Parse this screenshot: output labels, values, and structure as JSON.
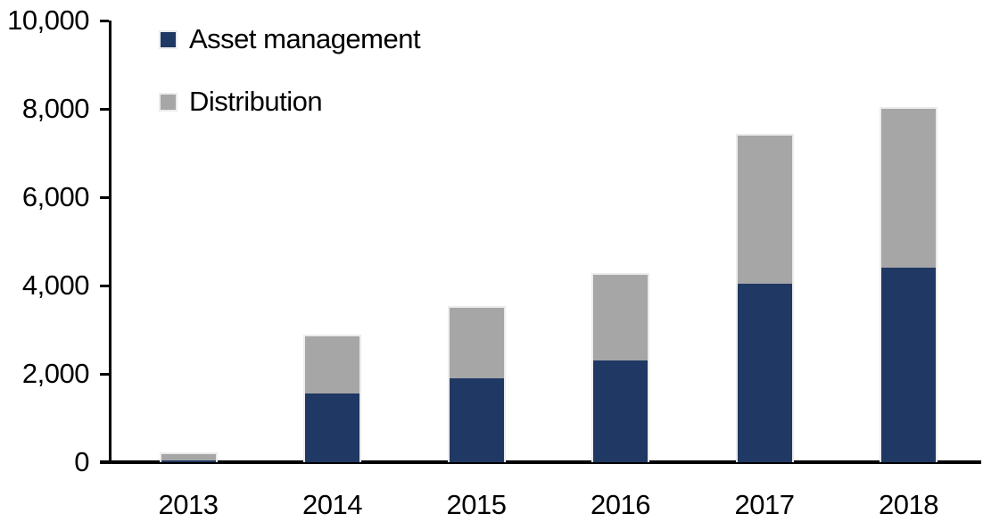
{
  "chart_data": {
    "type": "bar",
    "stacked": true,
    "title": "",
    "xlabel": "",
    "ylabel": "",
    "categories": [
      "2013",
      "2014",
      "2015",
      "2016",
      "2017",
      "2018"
    ],
    "series": [
      {
        "name": "Asset management",
        "color": "#1F3864",
        "values": [
          50,
          1550,
          1900,
          2300,
          4050,
          4400
        ]
      },
      {
        "name": "Distribution",
        "color": "#A6A6A6",
        "values": [
          125,
          1300,
          1600,
          1950,
          3350,
          3600
        ]
      }
    ],
    "totals": [
      175,
      2850,
      3500,
      4250,
      7400,
      8000
    ],
    "ylim": [
      0,
      10000
    ],
    "ytick_interval": 2000,
    "ytick_labels": [
      "0",
      "2,000",
      "4,000",
      "6,000",
      "8,000",
      "10,000"
    ],
    "grid": false,
    "legend_position": "top-left-inside",
    "colors": {
      "axis": "#000000",
      "bar_border": "#ECECEC",
      "background": "#FFFFFF",
      "text": "#000000"
    }
  }
}
